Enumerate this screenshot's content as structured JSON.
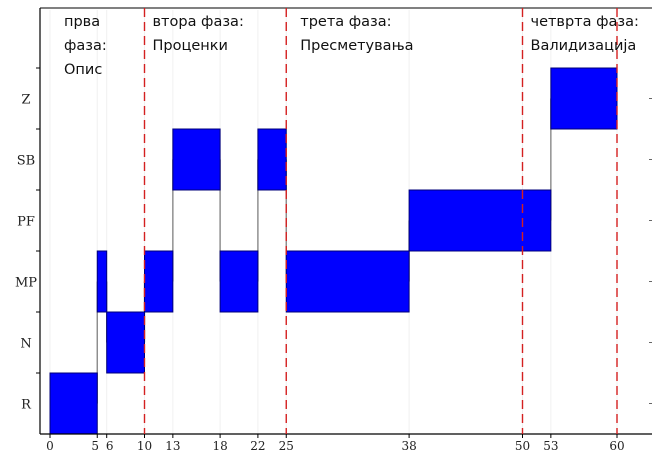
{
  "chart_data": {
    "type": "step-bar",
    "levels": [
      "R",
      "N",
      "MP",
      "PF",
      "SB",
      "Z"
    ],
    "x_ticks": [
      {
        "value": 0,
        "label": "0"
      },
      {
        "value": 5,
        "label": "5"
      },
      {
        "value": 6,
        "label": "6"
      },
      {
        "value": 10,
        "label": "10"
      },
      {
        "value": 13,
        "label": "13"
      },
      {
        "value": 18,
        "label": "18"
      },
      {
        "value": 22,
        "label": "22"
      },
      {
        "value": 25,
        "label": "25"
      },
      {
        "value": 38,
        "label": "38"
      },
      {
        "value": 50,
        "label": "50"
      },
      {
        "value": 53,
        "label": "53"
      },
      {
        "value": 60,
        "label": "60"
      }
    ],
    "xlim": [
      0,
      65
    ],
    "segments": [
      {
        "start": 0,
        "end": 5,
        "level": "R"
      },
      {
        "start": 5,
        "end": 6,
        "level": "MP"
      },
      {
        "start": 6,
        "end": 10,
        "level": "N"
      },
      {
        "start": 10,
        "end": 13,
        "level": "MP"
      },
      {
        "start": 13,
        "end": 18,
        "level": "SB"
      },
      {
        "start": 18,
        "end": 22,
        "level": "MP"
      },
      {
        "start": 22,
        "end": 25,
        "level": "SB"
      },
      {
        "start": 25,
        "end": 38,
        "level": "MP"
      },
      {
        "start": 38,
        "end": 53,
        "level": "PF"
      },
      {
        "start": 53,
        "end": 60,
        "level": "Z"
      }
    ],
    "phase_boundaries": [
      10,
      25,
      50,
      60
    ],
    "phases": [
      {
        "lines": [
          "прва",
          "фаза:",
          "Опис"
        ]
      },
      {
        "lines": [
          "втора фаза:",
          "Проценки"
        ]
      },
      {
        "lines": [
          "трета фаза:",
          "Пресметувања"
        ]
      },
      {
        "lines": [
          "четврта фаза:",
          "Валидизација"
        ]
      }
    ],
    "colors": {
      "bar": "#0000ff",
      "bar_edge": "#00007a",
      "phase_line": "#d42020",
      "axis": "#000000"
    }
  }
}
